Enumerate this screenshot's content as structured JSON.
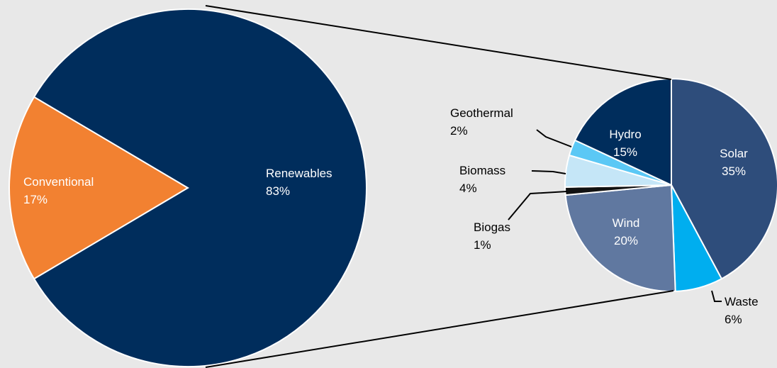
{
  "chart_data": [
    {
      "type": "pie",
      "categories": [
        "Conventional",
        "Renewables"
      ],
      "values": [
        17,
        83
      ],
      "value_labels": [
        "17%",
        "83%"
      ],
      "colors": [
        "#f28131",
        "#002d5c"
      ]
    },
    {
      "type": "pie",
      "categories": [
        "Solar",
        "Waste",
        "Wind",
        "Biogas",
        "Biomass",
        "Geothermal",
        "Hydro"
      ],
      "values": [
        35,
        6,
        20,
        1,
        4,
        2,
        15
      ],
      "value_labels": [
        "35%",
        "6%",
        "20%",
        "1%",
        "4%",
        "2%",
        "15%"
      ],
      "colors": [
        "#2e4d7b",
        "#00aeef",
        "#6078a0",
        "#111111",
        "#c5e6f7",
        "#5bc8f5",
        "#002d5c"
      ]
    }
  ]
}
